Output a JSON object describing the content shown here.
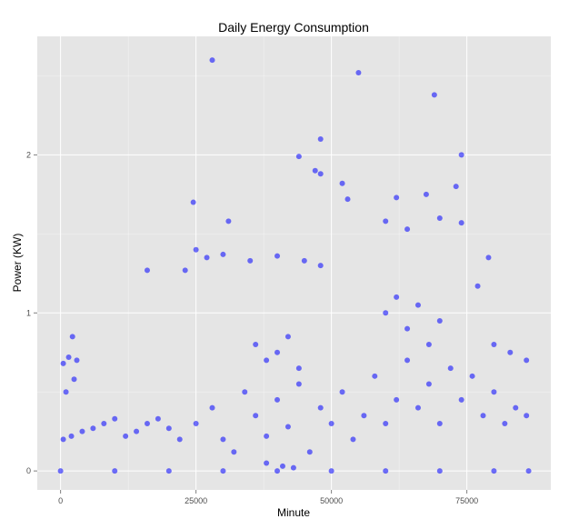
{
  "chart_data": {
    "type": "scatter",
    "title": "Daily Energy Consumption",
    "xlabel": "Minute",
    "ylabel": "Power (KW)",
    "xlim": [
      -4300,
      90500
    ],
    "ylim": [
      -0.12,
      2.75
    ],
    "x_ticks": [
      0,
      25000,
      50000,
      75000
    ],
    "x_tick_labels": [
      "0",
      "25000",
      "50000",
      "75000"
    ],
    "y_ticks": [
      0,
      1,
      2
    ],
    "y_tick_labels": [
      "0",
      "1",
      "2"
    ],
    "grid": true,
    "point_color": "#0000ff",
    "point_opacity": 0.1,
    "panel_background": "#e5e5e5",
    "grid_color": "#ffffff",
    "series": [
      {
        "points": [
          [
            0,
            0
          ],
          [
            10000,
            0
          ],
          [
            20000,
            0
          ],
          [
            30000,
            0
          ],
          [
            40000,
            0
          ],
          [
            50000,
            0
          ],
          [
            60000,
            0
          ],
          [
            70000,
            0
          ],
          [
            80000,
            0
          ],
          [
            86400,
            0
          ],
          [
            500,
            0.2
          ],
          [
            2000,
            0.22
          ],
          [
            4000,
            0.25
          ],
          [
            6000,
            0.27
          ],
          [
            8000,
            0.3
          ],
          [
            10000,
            0.33
          ],
          [
            12000,
            0.22
          ],
          [
            14000,
            0.25
          ],
          [
            16000,
            0.3
          ],
          [
            18000,
            0.33
          ],
          [
            20000,
            0.27
          ],
          [
            22000,
            0.2
          ],
          [
            1000,
            0.5
          ],
          [
            2500,
            0.58
          ],
          [
            3000,
            0.7
          ],
          [
            1500,
            0.72
          ],
          [
            2200,
            0.85
          ],
          [
            500,
            0.68
          ],
          [
            24500,
            1.7
          ],
          [
            23000,
            1.27
          ],
          [
            25000,
            1.4
          ],
          [
            16000,
            1.27
          ],
          [
            31000,
            1.58
          ],
          [
            27000,
            1.35
          ],
          [
            30000,
            1.37
          ],
          [
            35000,
            1.33
          ],
          [
            40000,
            1.36
          ],
          [
            45000,
            1.33
          ],
          [
            48000,
            1.3
          ],
          [
            28000,
            2.6
          ],
          [
            55000,
            2.52
          ],
          [
            69000,
            2.38
          ],
          [
            47000,
            1.9
          ],
          [
            48000,
            1.88
          ],
          [
            52000,
            1.82
          ],
          [
            53000,
            1.72
          ],
          [
            62000,
            1.73
          ],
          [
            67500,
            1.75
          ],
          [
            73000,
            1.8
          ],
          [
            74000,
            2.0
          ],
          [
            74000,
            1.57
          ],
          [
            60000,
            1.58
          ],
          [
            64000,
            1.53
          ],
          [
            70000,
            1.6
          ],
          [
            77000,
            1.17
          ],
          [
            79000,
            1.35
          ],
          [
            44000,
            1.99
          ],
          [
            48000,
            2.1
          ],
          [
            25000,
            0.3
          ],
          [
            28000,
            0.4
          ],
          [
            30000,
            0.2
          ],
          [
            32000,
            0.12
          ],
          [
            34000,
            0.5
          ],
          [
            36000,
            0.35
          ],
          [
            38000,
            0.22
          ],
          [
            40000,
            0.45
          ],
          [
            42000,
            0.28
          ],
          [
            44000,
            0.55
          ],
          [
            46000,
            0.12
          ],
          [
            48000,
            0.4
          ],
          [
            50000,
            0.3
          ],
          [
            52000,
            0.5
          ],
          [
            54000,
            0.2
          ],
          [
            56000,
            0.35
          ],
          [
            58000,
            0.6
          ],
          [
            60000,
            0.3
          ],
          [
            62000,
            0.45
          ],
          [
            64000,
            0.7
          ],
          [
            66000,
            0.4
          ],
          [
            68000,
            0.55
          ],
          [
            70000,
            0.3
          ],
          [
            72000,
            0.65
          ],
          [
            74000,
            0.45
          ],
          [
            76000,
            0.6
          ],
          [
            78000,
            0.35
          ],
          [
            80000,
            0.5
          ],
          [
            82000,
            0.3
          ],
          [
            84000,
            0.4
          ],
          [
            86000,
            0.35
          ],
          [
            60000,
            1.0
          ],
          [
            62000,
            1.1
          ],
          [
            64000,
            0.9
          ],
          [
            66000,
            1.05
          ],
          [
            68000,
            0.8
          ],
          [
            70000,
            0.95
          ],
          [
            36000,
            0.8
          ],
          [
            38000,
            0.7
          ],
          [
            40000,
            0.75
          ],
          [
            42000,
            0.85
          ],
          [
            44000,
            0.65
          ],
          [
            86000,
            0.7
          ],
          [
            80000,
            0.8
          ],
          [
            83000,
            0.75
          ],
          [
            41000,
            0.03
          ],
          [
            43000,
            0.02
          ],
          [
            38000,
            0.05
          ]
        ]
      }
    ]
  }
}
